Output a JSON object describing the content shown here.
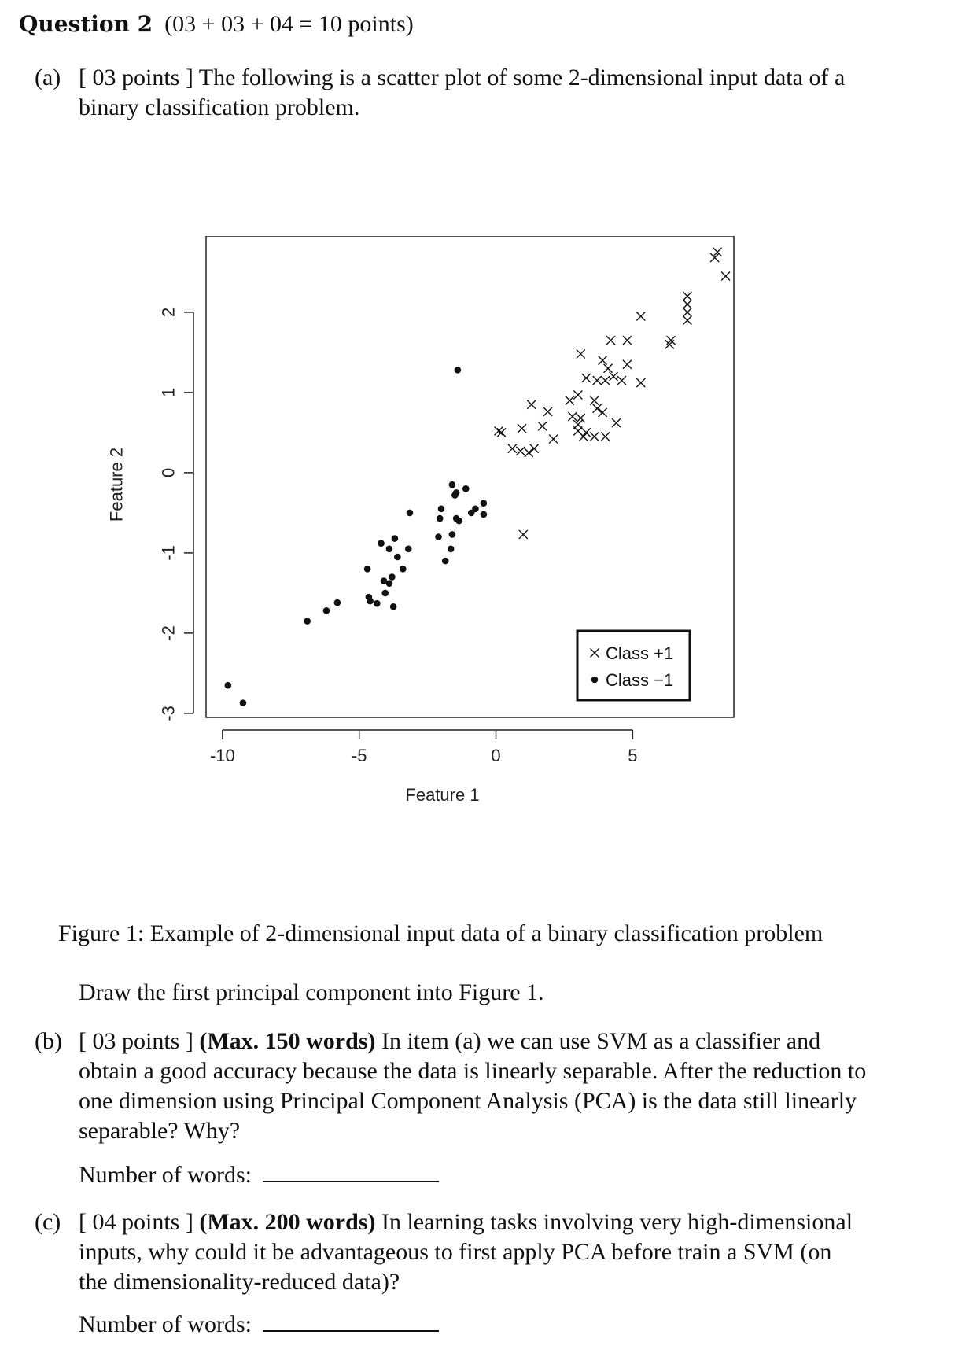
{
  "question": {
    "title_bold": "Question 2",
    "title_points": "(03 + 03 + 04 = 10 points)"
  },
  "part_a": {
    "label": "(a)",
    "points": "[ 03 points ]",
    "text_line1": "The following is a scatter plot of some 2-dimensional input data of a",
    "text_line2": "binary classification problem."
  },
  "figure": {
    "caption": "Figure 1: Example of 2-dimensional input data of a binary classification problem",
    "instruction": "Draw the first principal component into Figure 1."
  },
  "part_b": {
    "label": "(b)",
    "points": "[ 03 points ]",
    "limit": "(Max.  150 words)",
    "line1_rest": "In item (a) we can use SVM as a classifier and",
    "line2": "obtain a good accuracy because the data is linearly separable.  After the reduction to",
    "line3": "one dimension using Principal Component Analysis (PCA) is the data still linearly",
    "line4": "separable?  Why?",
    "word_count_label": "Number of words:"
  },
  "part_c": {
    "label": "(c)",
    "points": "[ 04 points ]",
    "limit": "(Max.  200 words)",
    "line1_rest": "In learning tasks involving very high-dimensional",
    "line2": "inputs, why could it be advantageous to first apply PCA before train a SVM (on",
    "line3": "the dimensionality-reduced data)?",
    "word_count_label": "Number of words:"
  },
  "chart_data": {
    "type": "scatter",
    "xlabel": "Feature 1",
    "ylabel": "Feature 2",
    "xlim": [
      -10.6,
      8.7
    ],
    "ylim": [
      -3.05,
      2.95
    ],
    "x_ticks": [
      -10,
      -5,
      0,
      5
    ],
    "x_tick_labels": [
      "-10",
      "-5",
      "0",
      "5"
    ],
    "y_ticks": [
      -3,
      -2,
      -1,
      0,
      1,
      2
    ],
    "y_tick_labels": [
      "-3",
      "-2",
      "-1",
      "0",
      "1",
      "2"
    ],
    "grid": false,
    "legend_position": "bottom-right",
    "series": [
      {
        "name": "Class +1",
        "marker": "x",
        "color": "#111111",
        "points": [
          [
            8.1,
            2.75
          ],
          [
            8.0,
            2.68
          ],
          [
            8.4,
            2.45
          ],
          [
            7.0,
            2.2
          ],
          [
            7.0,
            2.1
          ],
          [
            7.0,
            2.0
          ],
          [
            7.0,
            1.9
          ],
          [
            5.3,
            1.95
          ],
          [
            6.4,
            1.65
          ],
          [
            6.35,
            1.6
          ],
          [
            4.2,
            1.65
          ],
          [
            4.8,
            1.65
          ],
          [
            3.1,
            1.48
          ],
          [
            3.9,
            1.4
          ],
          [
            4.1,
            1.3
          ],
          [
            4.8,
            1.35
          ],
          [
            4.3,
            1.2
          ],
          [
            3.7,
            1.15
          ],
          [
            4.0,
            1.15
          ],
          [
            3.3,
            1.18
          ],
          [
            4.6,
            1.15
          ],
          [
            5.3,
            1.12
          ],
          [
            3.0,
            0.97
          ],
          [
            2.7,
            0.9
          ],
          [
            3.6,
            0.9
          ],
          [
            3.7,
            0.8
          ],
          [
            3.9,
            0.75
          ],
          [
            1.3,
            0.85
          ],
          [
            1.9,
            0.76
          ],
          [
            2.8,
            0.7
          ],
          [
            3.1,
            0.68
          ],
          [
            4.4,
            0.62
          ],
          [
            0.1,
            0.52
          ],
          [
            0.2,
            0.5
          ],
          [
            0.95,
            0.55
          ],
          [
            1.7,
            0.58
          ],
          [
            3.0,
            0.6
          ],
          [
            3.0,
            0.52
          ],
          [
            3.3,
            0.5
          ],
          [
            3.6,
            0.45
          ],
          [
            3.2,
            0.45
          ],
          [
            4.0,
            0.45
          ],
          [
            0.6,
            0.3
          ],
          [
            0.9,
            0.27
          ],
          [
            1.2,
            0.25
          ],
          [
            1.4,
            0.3
          ],
          [
            2.1,
            0.42
          ],
          [
            1.0,
            -0.77
          ]
        ]
      },
      {
        "name": "Class −1",
        "marker": "dot",
        "color": "#111111",
        "points": [
          [
            -1.4,
            1.28
          ],
          [
            -1.6,
            -0.15
          ],
          [
            -1.1,
            -0.2
          ],
          [
            -1.45,
            -0.25
          ],
          [
            -1.5,
            -0.28
          ],
          [
            -0.45,
            -0.38
          ],
          [
            -0.75,
            -0.45
          ],
          [
            -0.9,
            -0.5
          ],
          [
            -0.45,
            -0.52
          ],
          [
            -2.0,
            -0.45
          ],
          [
            -2.05,
            -0.57
          ],
          [
            -1.45,
            -0.57
          ],
          [
            -1.35,
            -0.6
          ],
          [
            -3.15,
            -0.5
          ],
          [
            -1.6,
            -0.77
          ],
          [
            -2.1,
            -0.8
          ],
          [
            -3.7,
            -0.82
          ],
          [
            -4.2,
            -0.88
          ],
          [
            -3.9,
            -0.95
          ],
          [
            -1.65,
            -0.95
          ],
          [
            -3.2,
            -0.95
          ],
          [
            -1.85,
            -1.1
          ],
          [
            -3.6,
            -1.05
          ],
          [
            -4.7,
            -1.2
          ],
          [
            -3.4,
            -1.2
          ],
          [
            -3.8,
            -1.3
          ],
          [
            -4.1,
            -1.35
          ],
          [
            -3.9,
            -1.38
          ],
          [
            -4.05,
            -1.5
          ],
          [
            -4.65,
            -1.55
          ],
          [
            -4.6,
            -1.6
          ],
          [
            -4.35,
            -1.63
          ],
          [
            -3.75,
            -1.67
          ],
          [
            -5.8,
            -1.62
          ],
          [
            -6.2,
            -1.72
          ],
          [
            -6.9,
            -1.85
          ],
          [
            -9.8,
            -2.65
          ],
          [
            -9.25,
            -2.87
          ]
        ]
      }
    ]
  }
}
